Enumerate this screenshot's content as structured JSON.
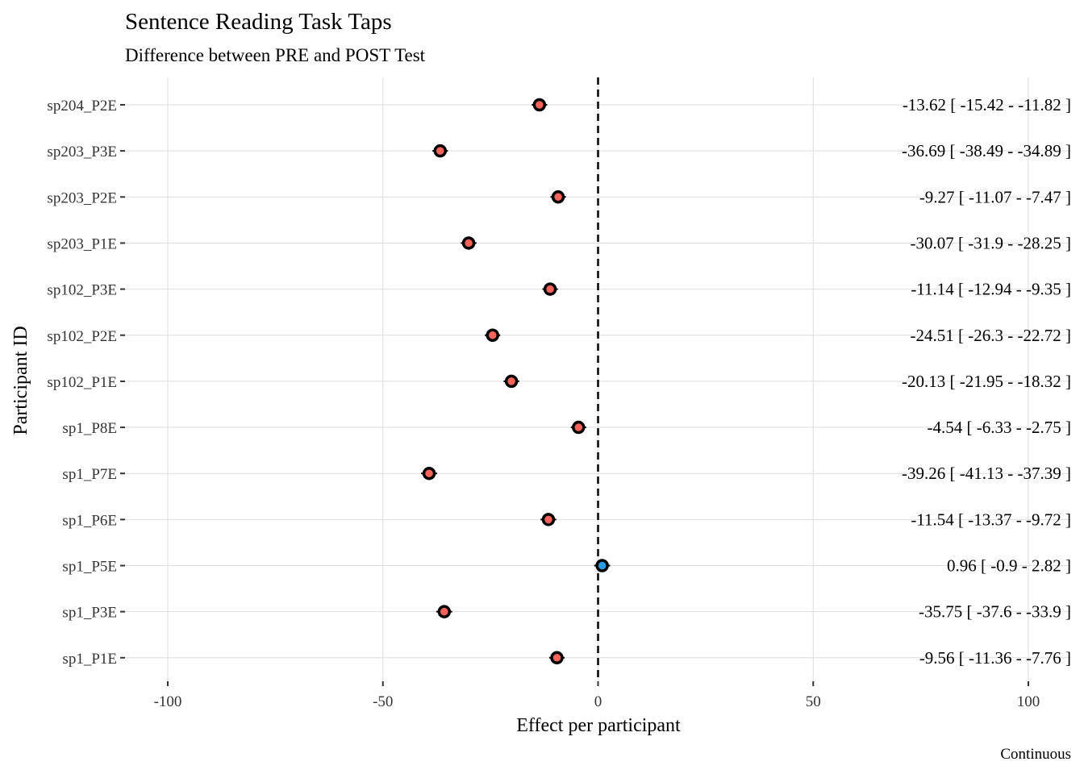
{
  "chart_data": {
    "type": "scatter",
    "title": "Sentence Reading Task Taps",
    "subtitle": "Difference between PRE and POST Test",
    "xlabel": "Effect per participant",
    "ylabel": "Participant ID",
    "caption": "Continuous",
    "xlim": [
      -110,
      110
    ],
    "x_ticks": [
      -100,
      -50,
      0,
      50,
      100
    ],
    "x_tick_labels": [
      "-100",
      "-50",
      "0",
      "50",
      "100"
    ],
    "reference_line": 0,
    "grid": true,
    "colors": {
      "negative": "#f8645a",
      "positive": "#2b9be0",
      "outline": "#000000"
    },
    "points": [
      {
        "id": "sp204_P2E",
        "estimate": -13.62,
        "lower": -15.42,
        "upper": -11.82,
        "label": "-13.62 [ -15.42 - -11.82 ]"
      },
      {
        "id": "sp203_P3E",
        "estimate": -36.69,
        "lower": -38.49,
        "upper": -34.89,
        "label": "-36.69 [ -38.49 - -34.89 ]"
      },
      {
        "id": "sp203_P2E",
        "estimate": -9.27,
        "lower": -11.07,
        "upper": -7.47,
        "label": "-9.27 [ -11.07 - -7.47 ]"
      },
      {
        "id": "sp203_P1E",
        "estimate": -30.07,
        "lower": -31.9,
        "upper": -28.25,
        "label": "-30.07 [ -31.9 - -28.25 ]"
      },
      {
        "id": "sp102_P3E",
        "estimate": -11.14,
        "lower": -12.94,
        "upper": -9.35,
        "label": "-11.14 [ -12.94 - -9.35 ]"
      },
      {
        "id": "sp102_P2E",
        "estimate": -24.51,
        "lower": -26.3,
        "upper": -22.72,
        "label": "-24.51 [ -26.3 - -22.72 ]"
      },
      {
        "id": "sp102_P1E",
        "estimate": -20.13,
        "lower": -21.95,
        "upper": -18.32,
        "label": "-20.13 [ -21.95 - -18.32 ]"
      },
      {
        "id": "sp1_P8E",
        "estimate": -4.54,
        "lower": -6.33,
        "upper": -2.75,
        "label": "-4.54 [ -6.33 - -2.75 ]"
      },
      {
        "id": "sp1_P7E",
        "estimate": -39.26,
        "lower": -41.13,
        "upper": -37.39,
        "label": "-39.26 [ -41.13 - -37.39 ]"
      },
      {
        "id": "sp1_P6E",
        "estimate": -11.54,
        "lower": -13.37,
        "upper": -9.72,
        "label": "-11.54 [ -13.37 - -9.72 ]"
      },
      {
        "id": "sp1_P5E",
        "estimate": 0.96,
        "lower": -0.9,
        "upper": 2.82,
        "label": "0.96 [ -0.9 - 2.82 ]"
      },
      {
        "id": "sp1_P3E",
        "estimate": -35.75,
        "lower": -37.6,
        "upper": -33.9,
        "label": "-35.75 [ -37.6 - -33.9 ]"
      },
      {
        "id": "sp1_P1E",
        "estimate": -9.56,
        "lower": -11.36,
        "upper": -7.76,
        "label": "-9.56 [ -11.36 - -7.76 ]"
      }
    ]
  }
}
